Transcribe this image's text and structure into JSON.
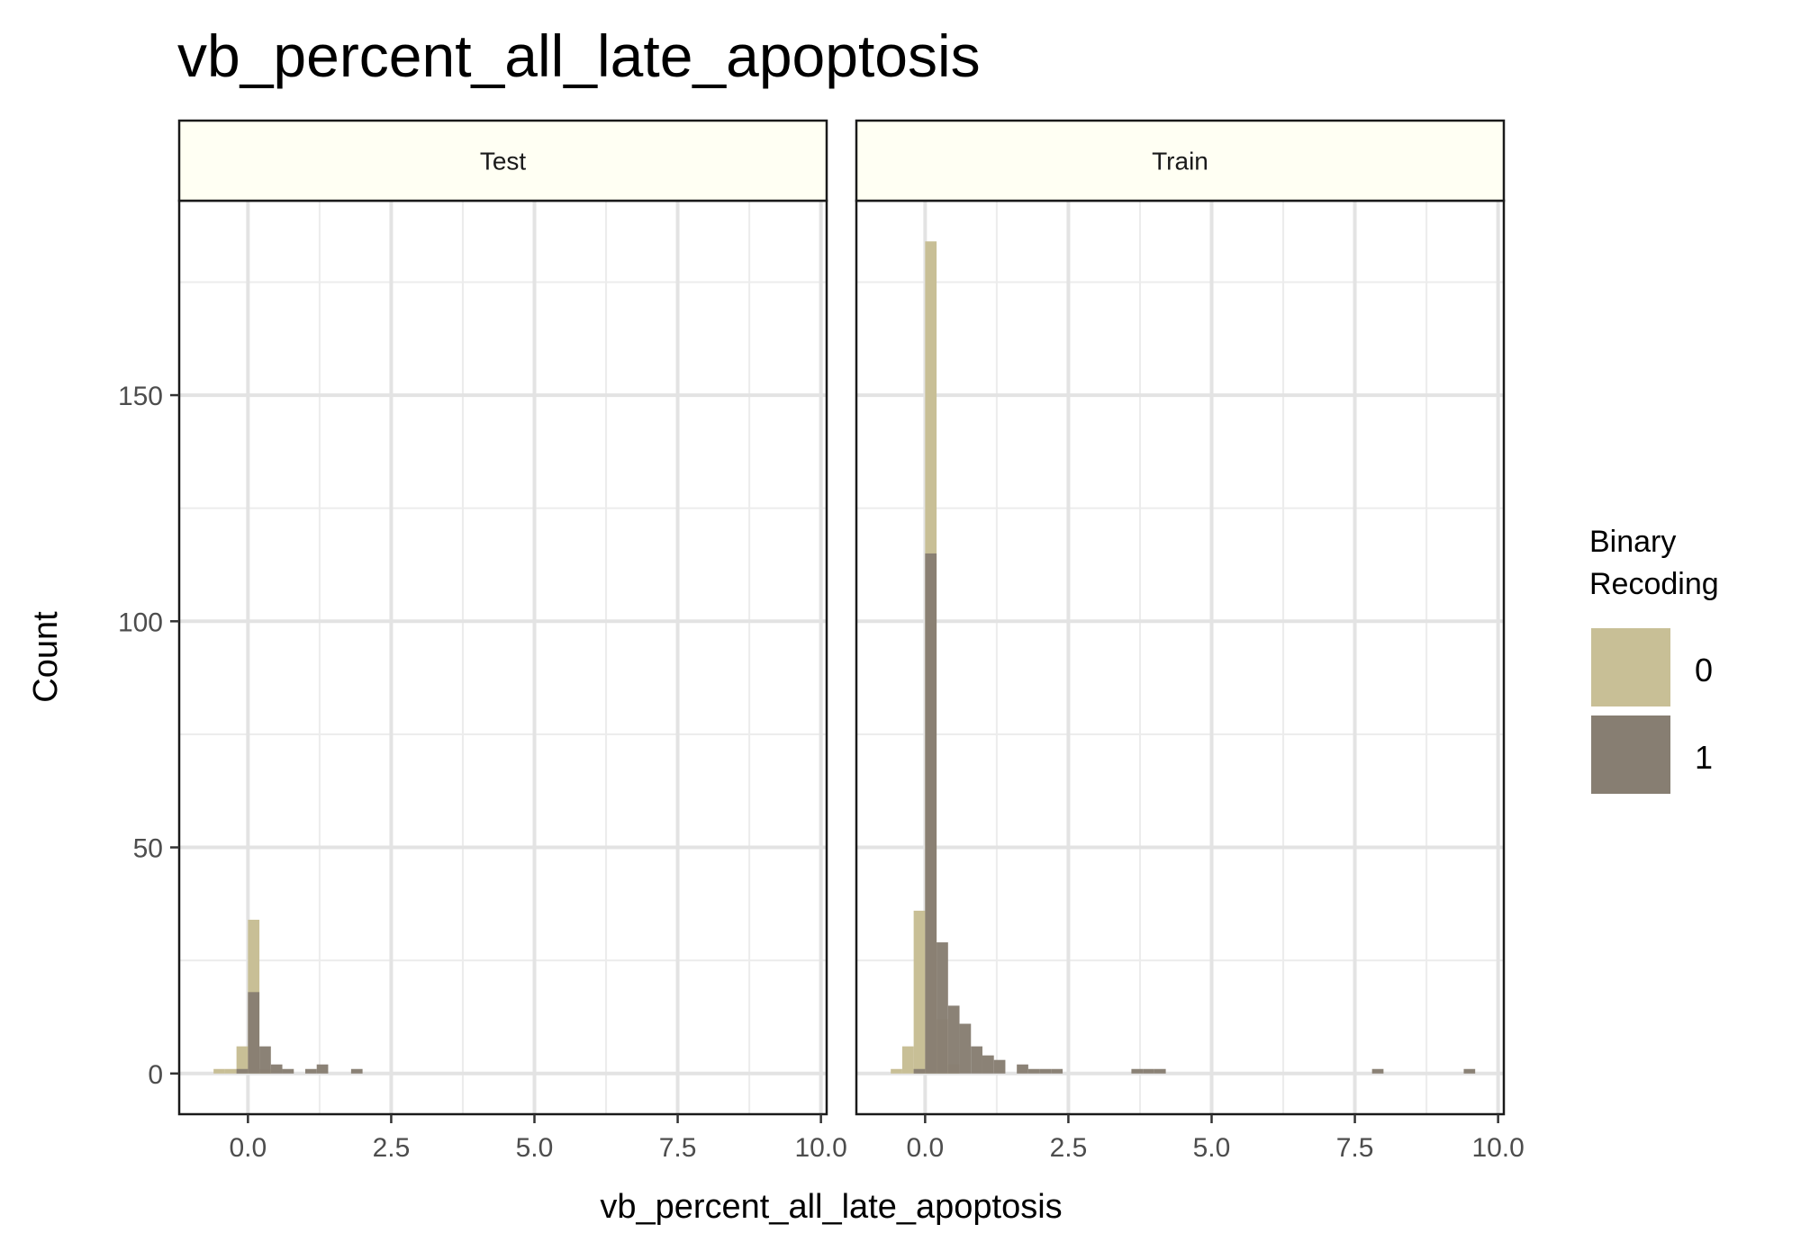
{
  "chart_data": {
    "type": "histogram",
    "title": "vb_percent_all_late_apoptosis",
    "xlabel": "vb_percent_all_late_apoptosis",
    "ylabel": "Count",
    "xlim": [
      -1.2,
      10.1
    ],
    "ylim": [
      -9,
      193
    ],
    "x_ticks": [
      0.0,
      2.5,
      5.0,
      7.5,
      10.0
    ],
    "x_tick_labels": [
      "0.0",
      "2.5",
      "5.0",
      "7.5",
      "10.0"
    ],
    "y_ticks": [
      0,
      50,
      100,
      150
    ],
    "y_tick_labels": [
      "0",
      "50",
      "100",
      "150"
    ],
    "bin_width": 0.2,
    "grid": true,
    "legend": {
      "title_lines": [
        "Binary",
        "Recoding"
      ],
      "position": "right",
      "items": [
        {
          "label": "0",
          "color": "#c8bf96"
        },
        {
          "label": "1",
          "color": "#877e72"
        }
      ]
    },
    "facets": [
      {
        "label": "Test",
        "series": [
          {
            "name": "0",
            "color": "#c8bf96",
            "bins": [
              [
                -0.6,
                1
              ],
              [
                -0.4,
                1
              ],
              [
                -0.2,
                6
              ],
              [
                0.0,
                34
              ],
              [
                0.2,
                1
              ]
            ]
          },
          {
            "name": "1",
            "color": "#877e72",
            "bins": [
              [
                -0.2,
                1
              ],
              [
                0.0,
                18
              ],
              [
                0.2,
                6
              ],
              [
                0.4,
                2
              ],
              [
                0.6,
                1
              ],
              [
                1.0,
                1
              ],
              [
                1.2,
                2
              ],
              [
                1.8,
                1
              ]
            ]
          }
        ]
      },
      {
        "label": "Train",
        "series": [
          {
            "name": "0",
            "color": "#c8bf96",
            "bins": [
              [
                -0.6,
                1
              ],
              [
                -0.4,
                6
              ],
              [
                -0.2,
                36
              ],
              [
                0.0,
                184
              ],
              [
                0.2,
                12
              ],
              [
                0.4,
                2
              ]
            ]
          },
          {
            "name": "1",
            "color": "#877e72",
            "bins": [
              [
                -0.2,
                1
              ],
              [
                0.0,
                115
              ],
              [
                0.2,
                29
              ],
              [
                0.4,
                15
              ],
              [
                0.6,
                11
              ],
              [
                0.8,
                6
              ],
              [
                1.0,
                4
              ],
              [
                1.2,
                3
              ],
              [
                1.6,
                2
              ],
              [
                1.8,
                1
              ],
              [
                2.0,
                1
              ],
              [
                2.2,
                1
              ],
              [
                3.6,
                1
              ],
              [
                3.8,
                1
              ],
              [
                4.0,
                1
              ],
              [
                7.8,
                1
              ],
              [
                9.4,
                1
              ]
            ]
          }
        ]
      }
    ]
  }
}
